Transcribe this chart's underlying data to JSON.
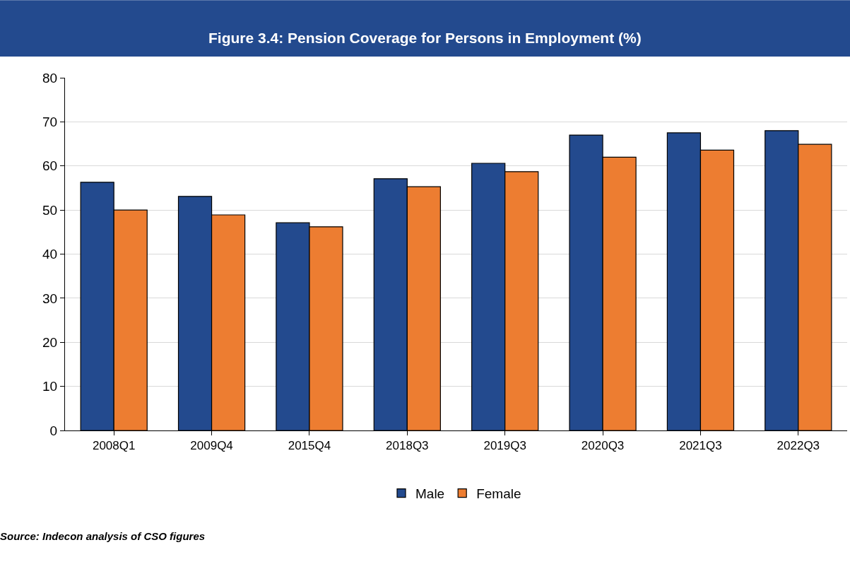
{
  "chart_data": {
    "type": "bar",
    "title": "Figure 3.4: Pension Coverage for Persons in Employment (%)",
    "categories": [
      "2008Q1",
      "2009Q4",
      "2015Q4",
      "2018Q3",
      "2019Q3",
      "2020Q3",
      "2021Q3",
      "2022Q3"
    ],
    "series": [
      {
        "name": "Male",
        "color": "#234a8e",
        "values": [
          56.3,
          53.1,
          47.1,
          57.1,
          60.6,
          67.0,
          67.5,
          68.0
        ]
      },
      {
        "name": "Female",
        "color": "#ed7d31",
        "values": [
          50.0,
          48.9,
          46.2,
          55.3,
          58.7,
          62.0,
          63.6,
          64.9
        ]
      }
    ],
    "ylim": [
      0,
      80
    ],
    "yticks": [
      0,
      10,
      20,
      30,
      40,
      50,
      60,
      70,
      80
    ],
    "grid": "y",
    "legend": "bottom",
    "annotations": [
      "Source: Indecon analysis of CSO figures"
    ]
  }
}
